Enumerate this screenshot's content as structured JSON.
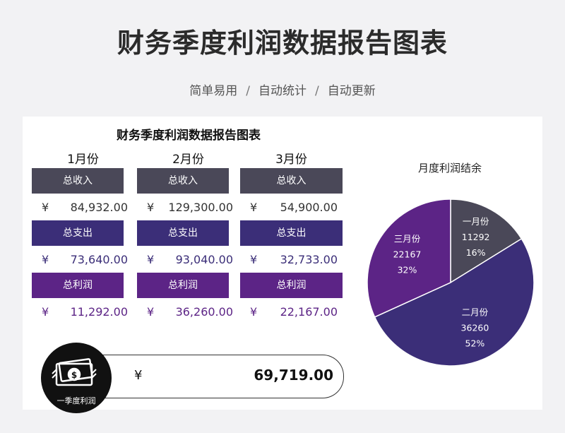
{
  "header": {
    "title": "财务季度利润数据报告图表",
    "subtitle_items": [
      "简单易用",
      "自动统计",
      "自动更新"
    ],
    "separator": "/"
  },
  "card": {
    "title": "财务季度利润数据报告图表",
    "months": [
      {
        "label": "1月份",
        "income_label": "总收入",
        "income_cur": "¥",
        "income": "84,932.00",
        "expense_label": "总支出",
        "expense_cur": "¥",
        "expense": "73,640.00",
        "profit_label": "总利润",
        "profit_cur": "¥",
        "profit": "11,292.00"
      },
      {
        "label": "2月份",
        "income_label": "总收入",
        "income_cur": "¥",
        "income": "129,300.00",
        "expense_label": "总支出",
        "expense_cur": "¥",
        "expense": "93,040.00",
        "profit_label": "总利润",
        "profit_cur": "¥",
        "profit": "36,260.00"
      },
      {
        "label": "3月份",
        "income_label": "总收入",
        "income_cur": "¥",
        "income": "54,900.00",
        "expense_label": "总支出",
        "expense_cur": "¥",
        "expense": "32,733.00",
        "profit_label": "总利润",
        "profit_cur": "¥",
        "profit": "22,167.00"
      }
    ],
    "total": {
      "label": "一季度利润",
      "currency": "¥",
      "value": "69,719.00",
      "icon": "money-icon"
    }
  },
  "colors": {
    "income": "#4a4858",
    "expense": "#3b2e78",
    "profit": "#5c2486",
    "pie_month1": "#4a4858",
    "pie_month2": "#3b2e78",
    "pie_month3": "#5c2486"
  },
  "chart_data": {
    "type": "pie",
    "title": "月度利润结余",
    "slices": [
      {
        "label": "一月份",
        "value": 11292,
        "percent": "16%"
      },
      {
        "label": "二月份",
        "value": 36260,
        "percent": "52%"
      },
      {
        "label": "三月份",
        "value": 22167,
        "percent": "32%"
      }
    ]
  }
}
